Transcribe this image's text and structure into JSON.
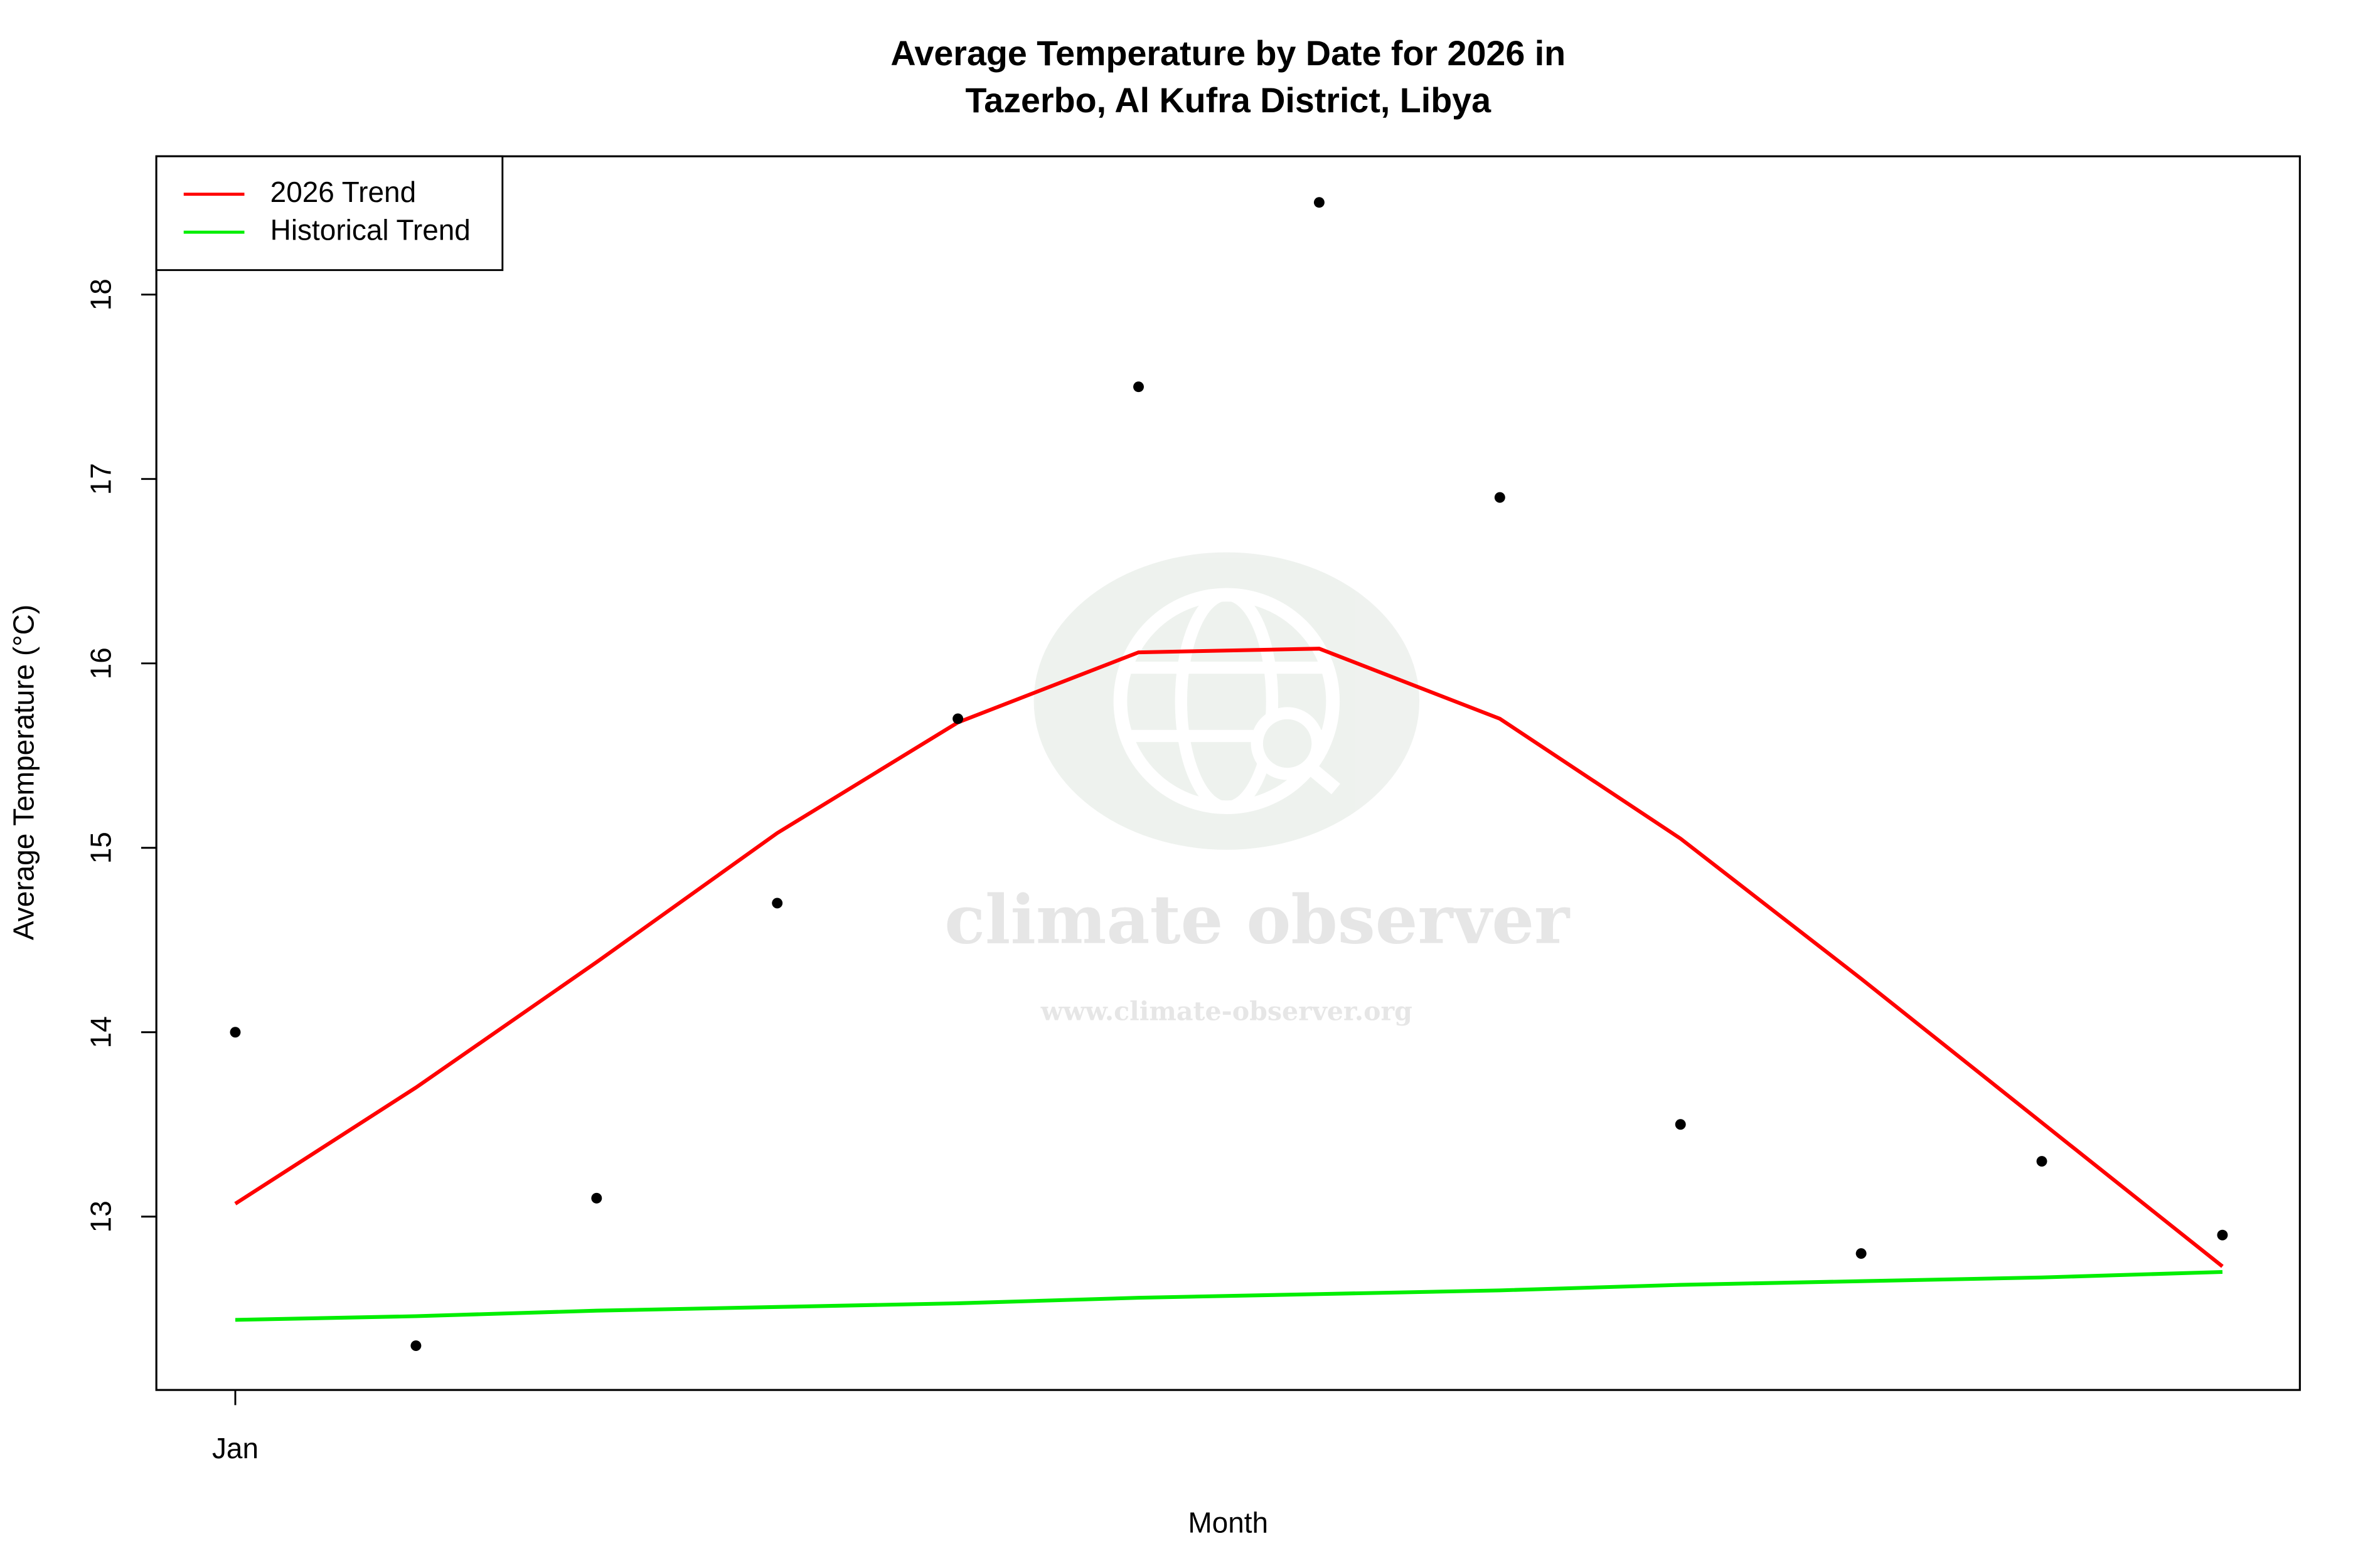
{
  "chart_data": {
    "type": "scatter",
    "title": "Average Temperature by Date for 2026 in",
    "subtitle": "Tazerbo, Al Kufra District, Libya",
    "x_label": "Month",
    "y_label": "Average Temperature (°C)",
    "categories": [
      "Jan",
      null,
      null,
      null,
      null,
      null,
      null,
      null,
      null,
      null,
      null,
      null
    ],
    "values": [
      14.0,
      12.3,
      13.1,
      14.7,
      15.7,
      17.5,
      18.5,
      16.9,
      13.5,
      12.8,
      13.3,
      12.9
    ],
    "point_color": "#000000",
    "series": [
      {
        "name": "2026 Trend",
        "color": "#ff0000",
        "values": [
          13.07,
          13.7,
          14.38,
          15.08,
          15.68,
          16.06,
          16.08,
          15.7,
          15.05,
          14.29,
          13.51,
          12.73
        ]
      },
      {
        "name": "Historical Trend",
        "color": "#00ee00",
        "values": [
          12.44,
          12.46,
          12.49,
          12.51,
          12.53,
          12.56,
          12.58,
          12.6,
          12.63,
          12.65,
          12.67,
          12.7
        ]
      }
    ],
    "ylim": [
      12.06,
      18.75
    ],
    "yticks": [
      13,
      14,
      15,
      16,
      17,
      18
    ],
    "legend": "top-left",
    "watermark": {
      "name": "climate observer",
      "url": "www.climate-observer.org"
    }
  }
}
